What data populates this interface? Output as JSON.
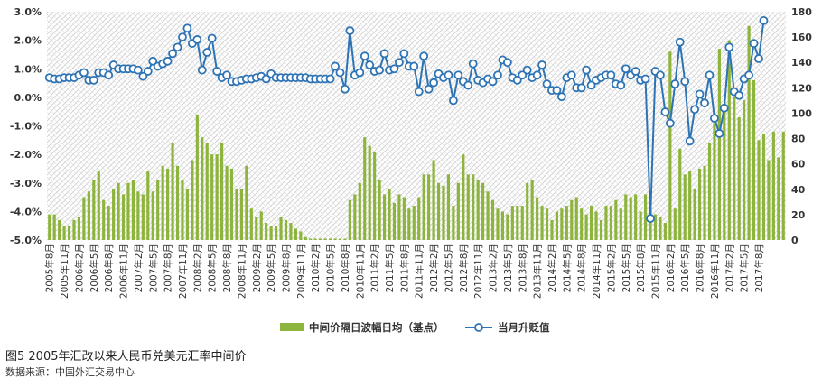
{
  "caption": "图5  2005年汇改以来人民币兑美元汇率中间价",
  "source": "数据来源：中国外汇交易中心",
  "chart_data": {
    "type": "bar+line",
    "title": "",
    "y_left": {
      "min": -5.0,
      "max": 3.0,
      "step": 1.0,
      "tick_labels": [
        "-5.0%",
        "-4.0%",
        "-3.0%",
        "-2.0%",
        "-1.0%",
        "0.0%",
        "1.0%",
        "2.0%",
        "3.0%"
      ]
    },
    "y_right": {
      "min": 0,
      "max": 180,
      "step": 20,
      "tick_labels": [
        "0",
        "20",
        "40",
        "60",
        "80",
        "100",
        "120",
        "140",
        "160",
        "180"
      ]
    },
    "grid": "background hatch pattern",
    "legend_position": "bottom-center",
    "x_tick_labels": [
      "2005年8月",
      "2005年11月",
      "2006年2月",
      "2006年5月",
      "2006年8月",
      "2006年11月",
      "2007年2月",
      "2007年5月",
      "2007年8月",
      "2007年11月",
      "2008年2月",
      "2008年5月",
      "2008年8月",
      "2008年11月",
      "2009年2月",
      "2009年5月",
      "2009年8月",
      "2009年11月",
      "2010年2月",
      "2010年5月",
      "2010年8月",
      "2010年11月",
      "2011年2月",
      "2011年5月",
      "2011年8月",
      "2011年11月",
      "2012年2月",
      "2012年5月",
      "2012年8月",
      "2012年11月",
      "2013年2月",
      "2013年5月",
      "2013年8月",
      "2013年11月",
      "2014年2月",
      "2014年5月",
      "2014年8月",
      "2014年11月",
      "2015年2月",
      "2015年5月",
      "2015年8月",
      "2015年11月",
      "2016年2月",
      "2016年5月",
      "2016年8月",
      "2016年11月",
      "2017年2月",
      "2017年5月",
      "2017年8月"
    ],
    "series": [
      {
        "name": "中间价隔日波幅日均（基点）",
        "axis": "left",
        "kind": "bar",
        "color": "#8db43c",
        "values": [
          -4.1,
          -4.1,
          -4.3,
          -4.5,
          -4.5,
          -4.3,
          -4.2,
          -3.5,
          -3.3,
          -2.9,
          -2.6,
          -3.6,
          -3.8,
          -3.2,
          -3.0,
          -3.4,
          -3.0,
          -2.9,
          -3.3,
          -3.4,
          -2.6,
          -3.3,
          -2.9,
          -2.4,
          -2.5,
          -1.6,
          -2.4,
          -2.9,
          -3.2,
          -2.2,
          -0.6,
          -1.4,
          -1.6,
          -2.0,
          -2.0,
          -1.6,
          -2.4,
          -2.5,
          -3.2,
          -3.2,
          -2.4,
          -3.9,
          -4.2,
          -4.0,
          -4.4,
          -4.5,
          -4.5,
          -4.2,
          -4.3,
          -4.4,
          -4.6,
          -4.7,
          -4.9,
          -4.95,
          -4.95,
          -4.95,
          -4.95,
          -4.95,
          -4.95,
          -4.95,
          -4.95,
          -3.6,
          -3.4,
          -3.0,
          -1.4,
          -1.7,
          -1.9,
          -2.9,
          -3.4,
          -3.2,
          -3.7,
          -3.4,
          -3.5,
          -3.9,
          -3.8,
          -3.5,
          -2.7,
          -2.7,
          -2.2,
          -3.0,
          -3.1,
          -2.7,
          -3.8,
          -3.0,
          -2.0,
          -2.7,
          -2.7,
          -2.9,
          -3.0,
          -3.3,
          -3.6,
          -3.9,
          -4.0,
          -4.1,
          -3.8,
          -3.8,
          -3.8,
          -3.0,
          -2.9,
          -3.5,
          -3.8,
          -3.9,
          -4.3,
          -4.0,
          -3.9,
          -3.8,
          -3.6,
          -3.5,
          -3.9,
          -4.1,
          -3.8,
          -4.0,
          -4.3,
          -3.8,
          -3.8,
          -3.6,
          -3.9,
          -3.4,
          -3.5,
          -3.4,
          -4.0,
          -3.4,
          -3.9,
          -4.1,
          -4.2,
          -4.4,
          1.6,
          -3.9,
          -1.8,
          -2.7,
          -2.6,
          -3.2,
          -2.5,
          -2.4,
          -1.6,
          -0.9,
          1.7,
          -0.3,
          2.0,
          0.0,
          -0.7,
          -0.1,
          2.5,
          0.6,
          -1.5,
          -1.3,
          -2.2,
          -1.2,
          -2.1,
          -1.2
        ]
      },
      {
        "name": "当月升贬值",
        "axis": "right",
        "kind": "line",
        "color": "#2e74b5",
        "values": [
          128,
          127,
          127,
          128,
          128,
          128,
          130,
          132,
          126,
          126,
          132,
          132,
          130,
          138,
          135,
          135,
          135,
          135,
          134,
          129,
          133,
          141,
          137,
          139,
          141,
          147,
          152,
          160,
          167,
          155,
          158,
          134,
          148,
          159,
          133,
          128,
          130,
          125,
          125,
          126,
          127,
          127,
          128,
          129,
          127,
          131,
          128,
          128,
          128,
          128,
          128,
          128,
          128,
          127,
          127,
          127,
          127,
          127,
          137,
          132,
          119,
          165,
          130,
          132,
          145,
          138,
          133,
          134,
          147,
          134,
          135,
          140,
          147,
          137,
          137,
          117,
          145,
          119,
          124,
          131,
          128,
          130,
          110,
          130,
          125,
          122,
          139,
          126,
          124,
          127,
          125,
          130,
          142,
          140,
          128,
          126,
          130,
          134,
          128,
          130,
          138,
          123,
          118,
          118,
          113,
          128,
          130,
          120,
          120,
          134,
          122,
          126,
          128,
          130,
          130,
          123,
          122,
          135,
          130,
          133,
          126,
          127,
          17,
          133,
          130,
          101,
          92,
          123,
          156,
          125,
          78,
          103,
          115,
          108,
          130,
          96,
          84,
          104,
          152,
          117,
          114,
          127,
          130,
          155,
          143,
          173
        ]
      }
    ]
  }
}
